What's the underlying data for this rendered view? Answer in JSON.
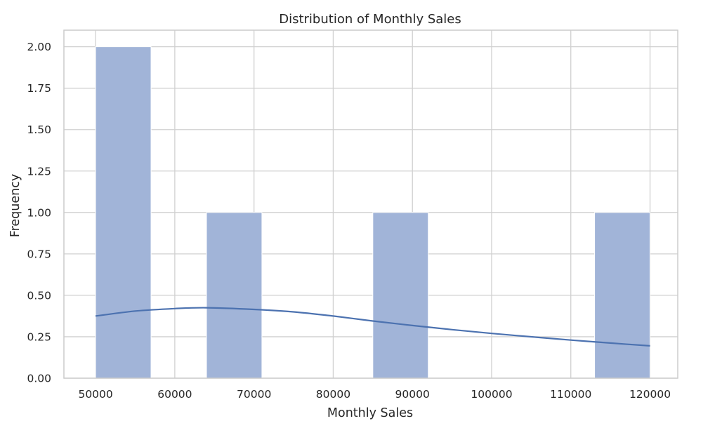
{
  "chart_data": {
    "type": "bar",
    "subtype": "histogram-with-kde",
    "title": "Distribution of Monthly Sales",
    "xlabel": "Monthly Sales",
    "ylabel": "Frequency",
    "xlim": [
      46000,
      123500
    ],
    "ylim": [
      0,
      2.1
    ],
    "x_ticks": [
      "50000",
      "60000",
      "70000",
      "80000",
      "90000",
      "100000",
      "110000",
      "120000"
    ],
    "x_tick_values": [
      50000,
      60000,
      70000,
      80000,
      90000,
      100000,
      110000,
      120000
    ],
    "y_ticks": [
      "0.00",
      "0.25",
      "0.50",
      "0.75",
      "1.00",
      "1.25",
      "1.50",
      "1.75",
      "2.00"
    ],
    "y_tick_values": [
      0,
      0.25,
      0.5,
      0.75,
      1.0,
      1.25,
      1.5,
      1.75,
      2.0
    ],
    "bins": [
      {
        "start": 50000,
        "end": 57000,
        "count": 2
      },
      {
        "start": 64000,
        "end": 71000,
        "count": 1
      },
      {
        "start": 85000,
        "end": 92000,
        "count": 1
      },
      {
        "start": 113000,
        "end": 120000,
        "count": 1
      }
    ],
    "kde": {
      "x": [
        50000,
        55000,
        60000,
        64000,
        70000,
        75000,
        80000,
        85000,
        90000,
        95000,
        100000,
        105000,
        110000,
        115000,
        120000
      ],
      "y": [
        0.375,
        0.405,
        0.42,
        0.425,
        0.415,
        0.4,
        0.375,
        0.345,
        0.318,
        0.293,
        0.27,
        0.25,
        0.23,
        0.212,
        0.195
      ]
    },
    "grid": true,
    "colors": {
      "bar_fill": "#a1b4d8",
      "bar_edge": "#ffffff",
      "kde_line": "#4c72b0",
      "grid": "#d0d0d0",
      "frame": "#cccccc",
      "text": "#262626"
    }
  }
}
